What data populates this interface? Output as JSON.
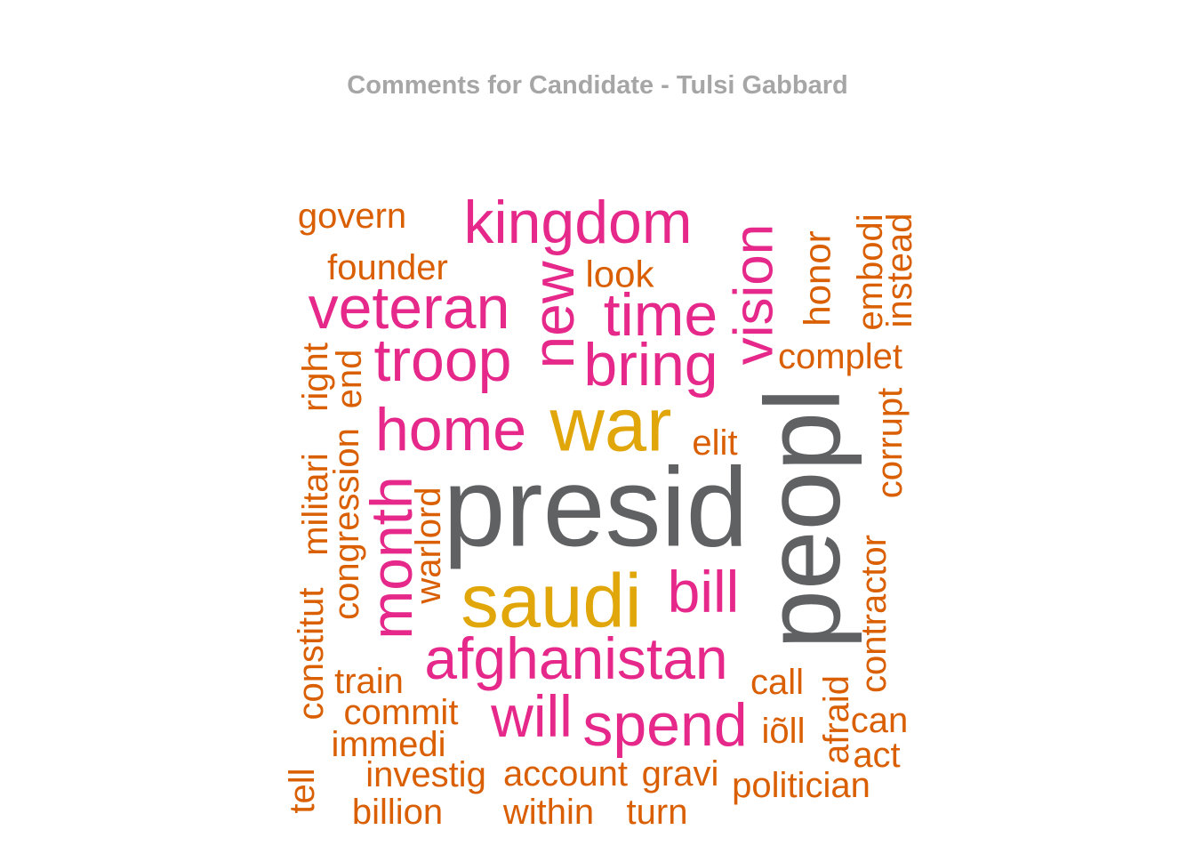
{
  "chart_data": {
    "type": "wordcloud",
    "title": "Comments for Candidate - Tulsi Gabbard",
    "colors": {
      "tier_largest": "#5f6163",
      "tier_large": "#e0a60a",
      "tier_medium": "#e5288a",
      "tier_small": "#d95f02"
    },
    "words": [
      {
        "text": "presid",
        "freq": 10,
        "tier": "tier_largest",
        "rotated": false
      },
      {
        "text": "peopl",
        "freq": 10,
        "tier": "tier_largest",
        "rotated": true
      },
      {
        "text": "war",
        "freq": 8,
        "tier": "tier_large",
        "rotated": false
      },
      {
        "text": "saudi",
        "freq": 8,
        "tier": "tier_large",
        "rotated": false
      },
      {
        "text": "kingdom",
        "freq": 6,
        "tier": "tier_medium",
        "rotated": false
      },
      {
        "text": "veteran",
        "freq": 6,
        "tier": "tier_medium",
        "rotated": false
      },
      {
        "text": "troop",
        "freq": 6,
        "tier": "tier_medium",
        "rotated": false
      },
      {
        "text": "home",
        "freq": 6,
        "tier": "tier_medium",
        "rotated": false
      },
      {
        "text": "month",
        "freq": 6,
        "tier": "tier_medium",
        "rotated": true
      },
      {
        "text": "new",
        "freq": 6,
        "tier": "tier_medium",
        "rotated": true
      },
      {
        "text": "time",
        "freq": 6,
        "tier": "tier_medium",
        "rotated": false
      },
      {
        "text": "bring",
        "freq": 6,
        "tier": "tier_medium",
        "rotated": false
      },
      {
        "text": "vision",
        "freq": 6,
        "tier": "tier_medium",
        "rotated": true
      },
      {
        "text": "bill",
        "freq": 6,
        "tier": "tier_medium",
        "rotated": false
      },
      {
        "text": "afghanistan",
        "freq": 6,
        "tier": "tier_medium",
        "rotated": false
      },
      {
        "text": "will",
        "freq": 6,
        "tier": "tier_medium",
        "rotated": false
      },
      {
        "text": "spend",
        "freq": 6,
        "tier": "tier_medium",
        "rotated": false
      },
      {
        "text": "govern",
        "freq": 4,
        "tier": "tier_small",
        "rotated": false
      },
      {
        "text": "founder",
        "freq": 4,
        "tier": "tier_small",
        "rotated": false
      },
      {
        "text": "look",
        "freq": 4,
        "tier": "tier_small",
        "rotated": false
      },
      {
        "text": "honor",
        "freq": 4,
        "tier": "tier_small",
        "rotated": true
      },
      {
        "text": "embodi",
        "freq": 4,
        "tier": "tier_small",
        "rotated": true
      },
      {
        "text": "instead",
        "freq": 4,
        "tier": "tier_small",
        "rotated": true
      },
      {
        "text": "complet",
        "freq": 4,
        "tier": "tier_small",
        "rotated": false
      },
      {
        "text": "right",
        "freq": 4,
        "tier": "tier_small",
        "rotated": true
      },
      {
        "text": "end",
        "freq": 4,
        "tier": "tier_small",
        "rotated": true
      },
      {
        "text": "elit",
        "freq": 4,
        "tier": "tier_small",
        "rotated": false
      },
      {
        "text": "corrupt",
        "freq": 4,
        "tier": "tier_small",
        "rotated": true
      },
      {
        "text": "militari",
        "freq": 4,
        "tier": "tier_small",
        "rotated": true
      },
      {
        "text": "congression",
        "freq": 4,
        "tier": "tier_small",
        "rotated": true
      },
      {
        "text": "warlord",
        "freq": 4,
        "tier": "tier_small",
        "rotated": true
      },
      {
        "text": "constitut",
        "freq": 4,
        "tier": "tier_small",
        "rotated": true
      },
      {
        "text": "contractor",
        "freq": 4,
        "tier": "tier_small",
        "rotated": true
      },
      {
        "text": "train",
        "freq": 4,
        "tier": "tier_small",
        "rotated": false
      },
      {
        "text": "call",
        "freq": 4,
        "tier": "tier_small",
        "rotated": false
      },
      {
        "text": "commit",
        "freq": 4,
        "tier": "tier_small",
        "rotated": false
      },
      {
        "text": "afraid",
        "freq": 4,
        "tier": "tier_small",
        "rotated": true
      },
      {
        "text": "can",
        "freq": 4,
        "tier": "tier_small",
        "rotated": false
      },
      {
        "text": "iõll",
        "freq": 4,
        "tier": "tier_small",
        "rotated": false
      },
      {
        "text": "immedi",
        "freq": 4,
        "tier": "tier_small",
        "rotated": false
      },
      {
        "text": "act",
        "freq": 4,
        "tier": "tier_small",
        "rotated": false
      },
      {
        "text": "tell",
        "freq": 4,
        "tier": "tier_small",
        "rotated": true
      },
      {
        "text": "investig",
        "freq": 4,
        "tier": "tier_small",
        "rotated": false
      },
      {
        "text": "account",
        "freq": 4,
        "tier": "tier_small",
        "rotated": false
      },
      {
        "text": "gravi",
        "freq": 4,
        "tier": "tier_small",
        "rotated": false
      },
      {
        "text": "politician",
        "freq": 4,
        "tier": "tier_small",
        "rotated": false
      },
      {
        "text": "billion",
        "freq": 4,
        "tier": "tier_small",
        "rotated": false
      },
      {
        "text": "within",
        "freq": 4,
        "tier": "tier_small",
        "rotated": false
      },
      {
        "text": "turn",
        "freq": 4,
        "tier": "tier_small",
        "rotated": false
      }
    ]
  }
}
